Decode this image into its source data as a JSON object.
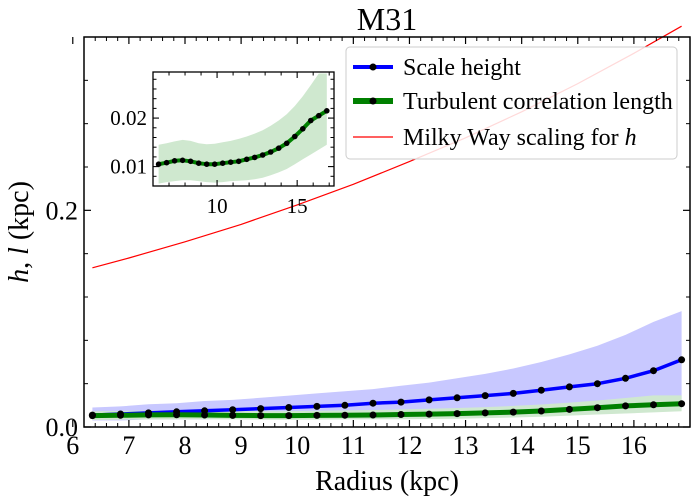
{
  "chart_data": {
    "type": "line",
    "title": "M31",
    "xlabel": "Radius (kpc)",
    "ylabel_main": "h, ",
    "ylabel_italic_l": "l",
    "ylabel_unit": " (kpc)",
    "xlim": [
      6.2,
      17.0
    ],
    "ylim": [
      0.0,
      0.36
    ],
    "x_ticks": [
      6,
      7,
      8,
      9,
      10,
      11,
      12,
      13,
      14,
      15,
      16
    ],
    "x_tick_labels": [
      "6",
      "7",
      "8",
      "9",
      "10",
      "11",
      "12",
      "13",
      "14",
      "15",
      "16"
    ],
    "y_ticks": [
      0.0,
      0.2
    ],
    "y_tick_labels": [
      "0.0",
      "0.2"
    ],
    "legend_position": "top-right",
    "series": [
      {
        "name": "Scale height",
        "color": "#0000ff",
        "band_color": "#c8c8ff",
        "marker_color": "#000000",
        "x": [
          6.35,
          6.85,
          7.35,
          7.85,
          8.35,
          8.85,
          9.35,
          9.85,
          10.35,
          10.85,
          11.35,
          11.85,
          12.35,
          12.85,
          13.35,
          13.85,
          14.35,
          14.85,
          15.35,
          15.85,
          16.35,
          16.85
        ],
        "values": [
          0.011,
          0.012,
          0.013,
          0.014,
          0.015,
          0.016,
          0.017,
          0.018,
          0.019,
          0.02,
          0.022,
          0.023,
          0.025,
          0.027,
          0.029,
          0.031,
          0.034,
          0.037,
          0.04,
          0.045,
          0.052,
          0.062
        ],
        "band_lower": [
          0.006,
          0.006,
          0.007,
          0.007,
          0.007,
          0.008,
          0.008,
          0.008,
          0.009,
          0.009,
          0.01,
          0.01,
          0.011,
          0.012,
          0.012,
          0.013,
          0.014,
          0.015,
          0.016,
          0.018,
          0.021,
          0.025
        ],
        "band_upper": [
          0.018,
          0.019,
          0.021,
          0.022,
          0.024,
          0.025,
          0.027,
          0.029,
          0.031,
          0.033,
          0.035,
          0.038,
          0.041,
          0.045,
          0.049,
          0.054,
          0.06,
          0.067,
          0.075,
          0.085,
          0.097,
          0.107
        ]
      },
      {
        "name": "Turbulent correlation length",
        "color": "#008000",
        "band_color": "#cfe8cf",
        "marker_color": "#000000",
        "x": [
          6.35,
          6.85,
          7.35,
          7.85,
          8.35,
          8.85,
          9.35,
          9.85,
          10.35,
          10.85,
          11.35,
          11.85,
          12.35,
          12.85,
          13.35,
          13.85,
          14.35,
          14.85,
          15.35,
          15.85,
          16.35,
          16.85
        ],
        "values": [
          0.0105,
          0.0108,
          0.0112,
          0.0113,
          0.0111,
          0.0107,
          0.0105,
          0.0105,
          0.0107,
          0.0109,
          0.0111,
          0.0115,
          0.0119,
          0.0124,
          0.013,
          0.0138,
          0.0148,
          0.0162,
          0.0178,
          0.0195,
          0.0205,
          0.0215
        ],
        "band_lower": [
          0.0065,
          0.0068,
          0.007,
          0.0072,
          0.0072,
          0.007,
          0.0068,
          0.0067,
          0.0068,
          0.007,
          0.0071,
          0.0072,
          0.0074,
          0.0077,
          0.0082,
          0.0088,
          0.0095,
          0.0105,
          0.0115,
          0.0125,
          0.0135,
          0.0145
        ],
        "band_upper": [
          0.0145,
          0.0148,
          0.0152,
          0.0155,
          0.0153,
          0.0148,
          0.0146,
          0.0147,
          0.015,
          0.0153,
          0.0157,
          0.0162,
          0.0168,
          0.0175,
          0.0184,
          0.0195,
          0.0208,
          0.0225,
          0.0245,
          0.0268,
          0.0292,
          0.0292
        ]
      },
      {
        "name": "Milky Way scaling for h",
        "legend_plain": "Milky Way scaling for ",
        "legend_italic": "h",
        "color": "#ff0000",
        "x": [
          6.35,
          7.0,
          8.0,
          9.0,
          10.0,
          11.0,
          12.0,
          13.0,
          14.0,
          15.0,
          16.0,
          16.85
        ],
        "values": [
          0.147,
          0.156,
          0.171,
          0.187,
          0.205,
          0.224,
          0.245,
          0.267,
          0.291,
          0.317,
          0.345,
          0.37
        ]
      }
    ],
    "inset": {
      "xlim": [
        6.0,
        17.3
      ],
      "ylim": [
        0.006,
        0.0295
      ],
      "x_ticks": [
        10,
        15
      ],
      "x_tick_labels": [
        "10",
        "15"
      ],
      "y_ticks": [
        0.01,
        0.02
      ],
      "y_tick_labels": [
        "0.01",
        "0.02"
      ],
      "series_index": 1
    }
  }
}
